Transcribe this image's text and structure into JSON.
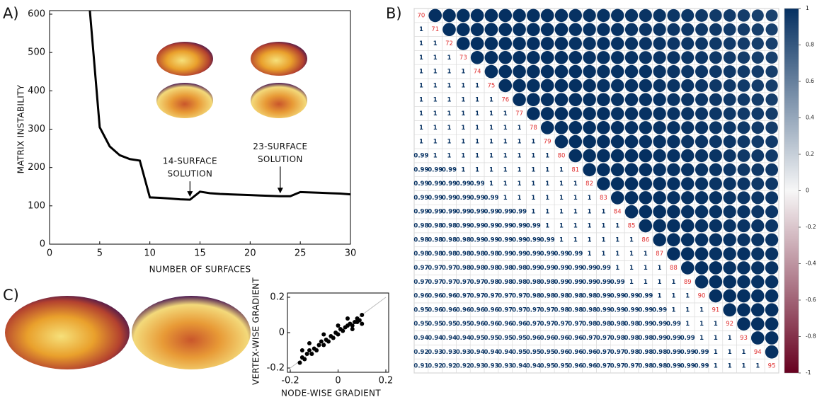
{
  "panel_labels": [
    "A)",
    "B)",
    "C)"
  ],
  "chart_data": [
    {
      "type": "line",
      "xlabel": "NUMBER OF SURFACES",
      "ylabel": "MATRIX INSTABILITY",
      "x": [
        4,
        5,
        6,
        7,
        8,
        9,
        10,
        11,
        12,
        13,
        14,
        15,
        16,
        17,
        18,
        19,
        20,
        21,
        22,
        23,
        24,
        25,
        26,
        27,
        28,
        29,
        30
      ],
      "values": [
        615,
        305,
        255,
        232,
        222,
        218,
        122,
        121,
        119,
        117,
        116,
        137,
        133,
        131,
        130,
        129,
        128,
        127,
        126,
        125,
        125,
        136,
        135,
        134,
        133,
        132,
        130
      ],
      "color": "#000000",
      "xlim": [
        0,
        30
      ],
      "ylim": [
        0,
        600
      ],
      "xticks": [
        0,
        5,
        10,
        15,
        20,
        25,
        30
      ],
      "yticks": [
        0,
        100,
        200,
        300,
        400,
        500,
        600
      ],
      "annotations": [
        {
          "lines": [
            "14-SURFACE",
            "SOLUTION"
          ],
          "x": 14
        },
        {
          "lines": [
            "23-SURFACE",
            "SOLUTION"
          ],
          "x": 23
        }
      ]
    },
    {
      "type": "correlogram",
      "diagonal": [
        70,
        71,
        72,
        73,
        74,
        75,
        76,
        77,
        78,
        79,
        80,
        81,
        82,
        83,
        84,
        85,
        86,
        87,
        88,
        89,
        90,
        91,
        92,
        93,
        94,
        95
      ],
      "lower": [
        [],
        [
          1
        ],
        [
          1,
          1
        ],
        [
          1,
          1,
          1
        ],
        [
          1,
          1,
          1,
          1
        ],
        [
          1,
          1,
          1,
          1,
          1
        ],
        [
          1,
          1,
          1,
          1,
          1,
          1
        ],
        [
          1,
          1,
          1,
          1,
          1,
          1,
          1
        ],
        [
          1,
          1,
          1,
          1,
          1,
          1,
          1,
          1
        ],
        [
          1,
          1,
          1,
          1,
          1,
          1,
          1,
          1,
          1
        ],
        [
          0.99,
          1,
          1,
          1,
          1,
          1,
          1,
          1,
          1,
          1
        ],
        [
          0.99,
          0.99,
          0.99,
          1,
          1,
          1,
          1,
          1,
          1,
          1,
          1
        ],
        [
          0.99,
          0.99,
          0.99,
          0.99,
          0.99,
          1,
          1,
          1,
          1,
          1,
          1,
          1
        ],
        [
          0.99,
          0.99,
          0.99,
          0.99,
          0.99,
          0.99,
          1,
          1,
          1,
          1,
          1,
          1,
          1
        ],
        [
          0.99,
          0.99,
          0.99,
          0.99,
          0.99,
          0.99,
          0.99,
          0.99,
          1,
          1,
          1,
          1,
          1,
          1
        ],
        [
          0.98,
          0.98,
          0.98,
          0.99,
          0.99,
          0.99,
          0.99,
          0.99,
          0.99,
          1,
          1,
          1,
          1,
          1,
          1
        ],
        [
          0.98,
          0.98,
          0.98,
          0.98,
          0.99,
          0.99,
          0.99,
          0.99,
          0.99,
          0.99,
          1,
          1,
          1,
          1,
          1,
          1
        ],
        [
          0.98,
          0.98,
          0.98,
          0.98,
          0.98,
          0.98,
          0.99,
          0.99,
          0.99,
          0.99,
          0.99,
          0.99,
          1,
          1,
          1,
          1,
          1
        ],
        [
          0.97,
          0.97,
          0.97,
          0.98,
          0.98,
          0.98,
          0.98,
          0.98,
          0.99,
          0.99,
          0.99,
          0.99,
          0.99,
          0.99,
          1,
          1,
          1,
          1
        ],
        [
          0.97,
          0.97,
          0.97,
          0.97,
          0.97,
          0.98,
          0.98,
          0.98,
          0.98,
          0.98,
          0.99,
          0.99,
          0.99,
          0.99,
          0.99,
          1,
          1,
          1,
          1
        ],
        [
          0.96,
          0.96,
          0.96,
          0.97,
          0.97,
          0.97,
          0.97,
          0.97,
          0.98,
          0.98,
          0.98,
          0.98,
          0.98,
          0.99,
          0.99,
          0.99,
          0.99,
          1,
          1,
          1
        ],
        [
          0.95,
          0.96,
          0.96,
          0.96,
          0.96,
          0.96,
          0.97,
          0.97,
          0.97,
          0.97,
          0.98,
          0.98,
          0.98,
          0.99,
          0.99,
          0.99,
          0.99,
          0.99,
          1,
          1,
          1
        ],
        [
          0.95,
          0.95,
          0.95,
          0.95,
          0.96,
          0.96,
          0.96,
          0.96,
          0.97,
          0.97,
          0.97,
          0.97,
          0.98,
          0.98,
          0.98,
          0.98,
          0.99,
          0.99,
          0.99,
          1,
          1,
          1
        ],
        [
          0.94,
          0.94,
          0.94,
          0.94,
          0.95,
          0.95,
          0.95,
          0.95,
          0.96,
          0.96,
          0.96,
          0.96,
          0.97,
          0.97,
          0.98,
          0.98,
          0.98,
          0.99,
          0.99,
          0.99,
          1,
          1,
          1
        ],
        [
          0.92,
          0.93,
          0.93,
          0.93,
          0.94,
          0.94,
          0.94,
          0.95,
          0.95,
          0.95,
          0.96,
          0.96,
          0.96,
          0.97,
          0.97,
          0.98,
          0.98,
          0.98,
          0.99,
          0.99,
          0.99,
          1,
          1,
          1
        ],
        [
          0.91,
          0.92,
          0.92,
          0.92,
          0.93,
          0.93,
          0.93,
          0.94,
          0.94,
          0.95,
          0.95,
          0.96,
          0.96,
          0.97,
          0.97,
          0.97,
          0.98,
          0.98,
          0.99,
          0.99,
          0.99,
          1,
          1,
          1,
          1
        ]
      ],
      "diagonal_color": "#e03030",
      "colormap": [
        "#67001f",
        "#f7f7f7",
        "#053061"
      ],
      "clim": [
        -1,
        1
      ],
      "cticks": [
        1,
        0.8,
        0.6,
        0.4,
        0.2,
        0,
        -0.2,
        -0.4,
        -0.6,
        -0.8,
        -1
      ]
    },
    {
      "type": "scatter",
      "xlabel": "NODE-WISE GRADIENT",
      "ylabel": "VERTEX-WISE GRADIENT",
      "x": [
        -0.16,
        -0.15,
        -0.14,
        -0.13,
        -0.12,
        -0.11,
        -0.1,
        -0.09,
        -0.08,
        -0.07,
        -0.06,
        -0.05,
        -0.04,
        -0.03,
        -0.02,
        -0.01,
        0,
        0.01,
        0.02,
        0.03,
        0.04,
        0.05,
        0.06,
        0.07,
        0.08,
        0.09,
        0.1,
        -0.12,
        -0.06,
        0,
        0.04,
        0.08,
        -0.15,
        0.06,
        0.1
      ],
      "y": [
        -0.17,
        -0.14,
        -0.15,
        -0.12,
        -0.1,
        -0.12,
        -0.09,
        -0.1,
        -0.07,
        -0.05,
        -0.07,
        -0.04,
        -0.05,
        -0.02,
        -0.03,
        0,
        -0.01,
        0.02,
        0.01,
        0.03,
        0.04,
        0.05,
        0.04,
        0.06,
        0.08,
        0.07,
        0.1,
        -0.06,
        -0.01,
        0.04,
        0.08,
        0.06,
        -0.1,
        0.02,
        0.05
      ],
      "color": "#000000",
      "xlim": [
        -0.2,
        0.2
      ],
      "ylim": [
        -0.2,
        0.2
      ],
      "xticks": [
        -0.2,
        0,
        0.2
      ],
      "yticks": [
        -0.2,
        0,
        0.2
      ]
    }
  ]
}
